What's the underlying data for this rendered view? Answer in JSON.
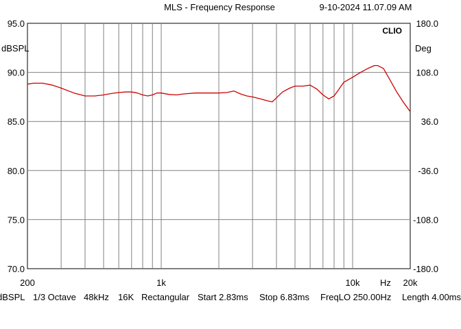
{
  "header": {
    "title": "MLS - Frequency Response",
    "datetime": "9-10-2024 11.07.09 AM"
  },
  "chart_data": {
    "type": "line",
    "title": "MLS - Frequency Response",
    "xscale": "log",
    "xlim": [
      200,
      20000
    ],
    "ylim": [
      70,
      95
    ],
    "y2lim": [
      -180,
      180
    ],
    "ylabel": "dBSPL",
    "y2label": "Deg",
    "x_ticks": [
      {
        "value": 200,
        "label": "200"
      },
      {
        "value": 1000,
        "label": "1k"
      },
      {
        "value": 10000,
        "label": "10k"
      },
      {
        "value": 20000,
        "label": "20k"
      }
    ],
    "x_unit_label": "Hz",
    "y_ticks": [
      {
        "value": 95,
        "label": "95.0"
      },
      {
        "value": 90,
        "label": "90.0"
      },
      {
        "value": 85,
        "label": "85.0"
      },
      {
        "value": 80,
        "label": "80.0"
      },
      {
        "value": 75,
        "label": "75.0"
      },
      {
        "value": 70,
        "label": "70.0"
      }
    ],
    "y2_ticks": [
      {
        "value": 180,
        "label": "180.0"
      },
      {
        "value": 108,
        "label": "108.0"
      },
      {
        "value": 36,
        "label": "36.0"
      },
      {
        "value": -36,
        "label": "-36.0"
      },
      {
        "value": -108,
        "label": "-108.0"
      },
      {
        "value": -180,
        "label": "-180.0"
      }
    ],
    "grid": true,
    "brand": "CLIO",
    "series": [
      {
        "color": "#cc0000",
        "x": [
          200,
          215,
          240,
          270,
          300,
          350,
          400,
          450,
          500,
          550,
          600,
          650,
          700,
          750,
          800,
          850,
          900,
          950,
          1000,
          1100,
          1200,
          1300,
          1500,
          1700,
          2000,
          2200,
          2400,
          2600,
          2800,
          3000,
          3300,
          3600,
          3800,
          4000,
          4300,
          4700,
          5000,
          5500,
          6000,
          6500,
          7000,
          7500,
          8000,
          8500,
          9000,
          10000,
          11000,
          12000,
          13000,
          13500,
          14500,
          15500,
          17000,
          18500,
          20000
        ],
        "values": [
          88.8,
          88.9,
          88.9,
          88.7,
          88.4,
          87.9,
          87.6,
          87.6,
          87.7,
          87.85,
          87.95,
          88.0,
          88.0,
          87.9,
          87.7,
          87.6,
          87.7,
          87.9,
          87.9,
          87.75,
          87.7,
          87.8,
          87.9,
          87.9,
          87.9,
          87.95,
          88.1,
          87.8,
          87.6,
          87.5,
          87.3,
          87.1,
          87.0,
          87.4,
          88.0,
          88.4,
          88.6,
          88.6,
          88.7,
          88.3,
          87.7,
          87.3,
          87.6,
          88.3,
          89.0,
          89.5,
          90.0,
          90.4,
          90.7,
          90.7,
          90.4,
          89.4,
          88.0,
          86.9,
          86.0
        ]
      }
    ]
  },
  "status_bar": {
    "items": [
      "dBSPL",
      "1/3 Octave",
      "48kHz",
      "16K",
      "Rectangular",
      "Start 2.83ms",
      "Stop 6.83ms",
      "FreqLO 250.00Hz",
      "Length 4.00ms"
    ]
  }
}
